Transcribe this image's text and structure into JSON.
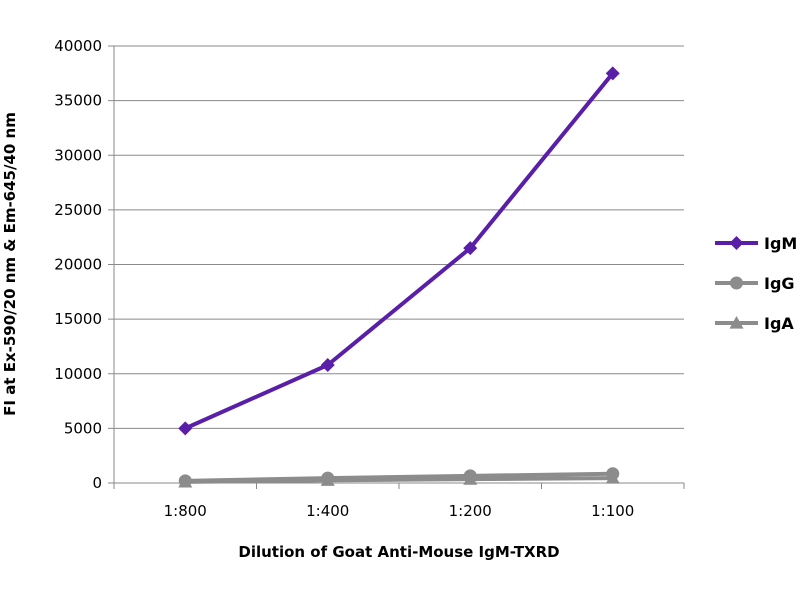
{
  "chart_data": {
    "type": "line",
    "title": "",
    "xlabel": "Dilution of Goat Anti-Mouse IgM-TXRD",
    "ylabel": "FI at Ex-590/20 nm & Em-645/40 nm",
    "categories": [
      "1:800",
      "1:400",
      "1:200",
      "1:100"
    ],
    "ylim": [
      0,
      40000
    ],
    "yticks": [
      0,
      5000,
      10000,
      15000,
      20000,
      25000,
      30000,
      35000,
      40000
    ],
    "grid": true,
    "legend_position": "right",
    "series": [
      {
        "name": "IgM",
        "marker": "diamond",
        "color": "#5a1fa8",
        "values": [
          5000,
          10800,
          21500,
          37500
        ]
      },
      {
        "name": "IgG",
        "marker": "circle",
        "color": "#8c8c8c",
        "values": [
          200,
          450,
          650,
          850
        ]
      },
      {
        "name": "IgA",
        "marker": "triangle",
        "color": "#8c8c8c",
        "values": [
          100,
          250,
          350,
          450
        ]
      }
    ]
  }
}
